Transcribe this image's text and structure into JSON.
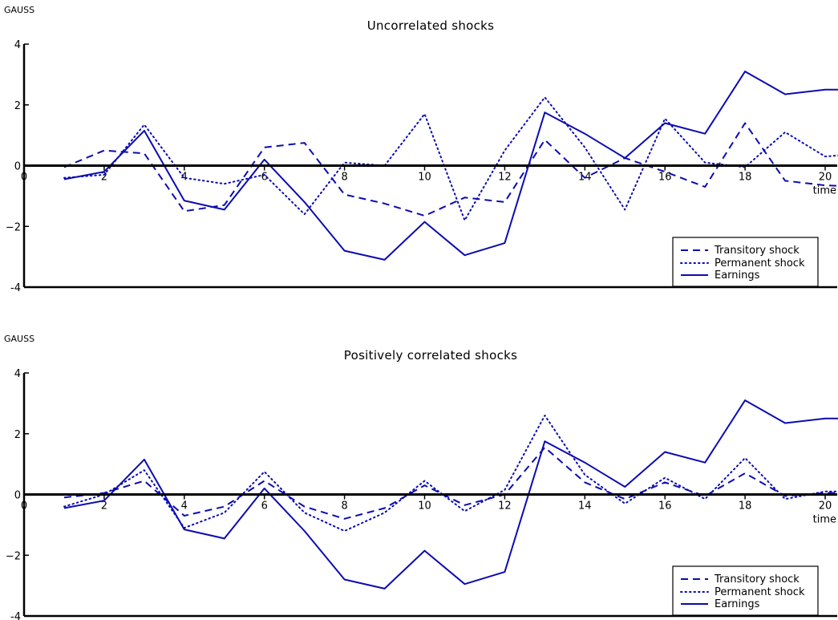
{
  "chart_data": [
    {
      "type": "line",
      "stamp": "GAUSS",
      "title": "Uncorrelated shocks",
      "xlabel": "time",
      "ylabel": "",
      "xlim": [
        0,
        20.3
      ],
      "ylim": [
        -4,
        4
      ],
      "x_ticks": [
        0,
        2,
        4,
        6,
        8,
        10,
        12,
        14,
        16,
        18,
        20
      ],
      "x_tick_labels": [
        "0",
        "2",
        "4",
        "6",
        "8",
        "10",
        "12",
        "14",
        "16",
        "18",
        "20"
      ],
      "y_ticks": [
        -4,
        -2,
        0,
        2,
        4
      ],
      "y_tick_labels": [
        "-4",
        "−2",
        "0",
        "2",
        "4"
      ],
      "x": [
        1,
        2,
        3,
        4,
        5,
        6,
        7,
        8,
        9,
        10,
        11,
        12,
        13,
        14,
        15,
        16,
        17,
        18,
        19,
        20,
        21
      ],
      "series": [
        {
          "name": "Transitory shock",
          "style": "dashed",
          "values": [
            -0.05,
            0.5,
            0.4,
            -1.5,
            -1.3,
            0.6,
            0.75,
            -0.95,
            -1.25,
            -1.65,
            -1.05,
            -1.2,
            0.85,
            -0.4,
            0.25,
            -0.2,
            -0.7,
            1.4,
            -0.5,
            -0.65,
            -0.7
          ]
        },
        {
          "name": "Permanent shock",
          "style": "dotted",
          "values": [
            -0.4,
            -0.3,
            1.35,
            -0.4,
            -0.6,
            -0.3,
            -1.6,
            0.1,
            0.0,
            1.7,
            -1.8,
            0.5,
            2.25,
            0.6,
            -1.45,
            1.55,
            0.1,
            -0.05,
            1.1,
            0.3,
            0.4
          ]
        },
        {
          "name": "Earnings",
          "style": "solid",
          "values": [
            -0.45,
            -0.2,
            1.15,
            -1.15,
            -1.45,
            0.2,
            -1.2,
            -2.8,
            -3.1,
            -1.85,
            -2.95,
            -2.55,
            1.75,
            1.05,
            0.25,
            1.4,
            1.05,
            3.1,
            2.35,
            2.5,
            2.5
          ]
        }
      ],
      "legend": {
        "position": "bottom-right"
      }
    },
    {
      "type": "line",
      "stamp": "GAUSS",
      "title": "Positively correlated shocks",
      "xlabel": "time",
      "ylabel": "",
      "xlim": [
        0,
        20.3
      ],
      "ylim": [
        -4,
        4
      ],
      "x_ticks": [
        0,
        2,
        4,
        6,
        8,
        10,
        12,
        14,
        16,
        18,
        20
      ],
      "x_tick_labels": [
        "0",
        "2",
        "4",
        "6",
        "8",
        "10",
        "12",
        "14",
        "16",
        "18",
        "20"
      ],
      "y_ticks": [
        -4,
        -2,
        0,
        2,
        4
      ],
      "y_tick_labels": [
        "-4",
        "−2",
        "0",
        "2",
        "4"
      ],
      "x": [
        1,
        2,
        3,
        4,
        5,
        6,
        7,
        8,
        9,
        10,
        11,
        12,
        13,
        14,
        15,
        16,
        17,
        18,
        19,
        20,
        21
      ],
      "series": [
        {
          "name": "Transitory shock",
          "style": "dashed",
          "values": [
            -0.1,
            0.05,
            0.45,
            -0.7,
            -0.4,
            0.45,
            -0.4,
            -0.8,
            -0.45,
            0.3,
            -0.35,
            0.0,
            1.55,
            0.4,
            -0.15,
            0.4,
            -0.05,
            0.7,
            -0.05,
            0.05,
            0.05
          ]
        },
        {
          "name": "Permanent shock",
          "style": "dotted",
          "values": [
            -0.4,
            0.0,
            0.8,
            -1.1,
            -0.6,
            0.75,
            -0.6,
            -1.2,
            -0.6,
            0.45,
            -0.55,
            0.15,
            2.6,
            0.65,
            -0.3,
            0.55,
            -0.15,
            1.2,
            -0.15,
            0.1,
            0.1
          ]
        },
        {
          "name": "Earnings",
          "style": "solid",
          "values": [
            -0.45,
            -0.2,
            1.15,
            -1.15,
            -1.45,
            0.2,
            -1.2,
            -2.8,
            -3.1,
            -1.85,
            -2.95,
            -2.55,
            1.75,
            1.05,
            0.25,
            1.4,
            1.05,
            3.1,
            2.35,
            2.5,
            2.5
          ]
        }
      ],
      "legend": {
        "position": "bottom-right"
      }
    }
  ],
  "colors": {
    "series": "#0b0bb2",
    "axis": "#000000",
    "zero_line": "#000000"
  }
}
